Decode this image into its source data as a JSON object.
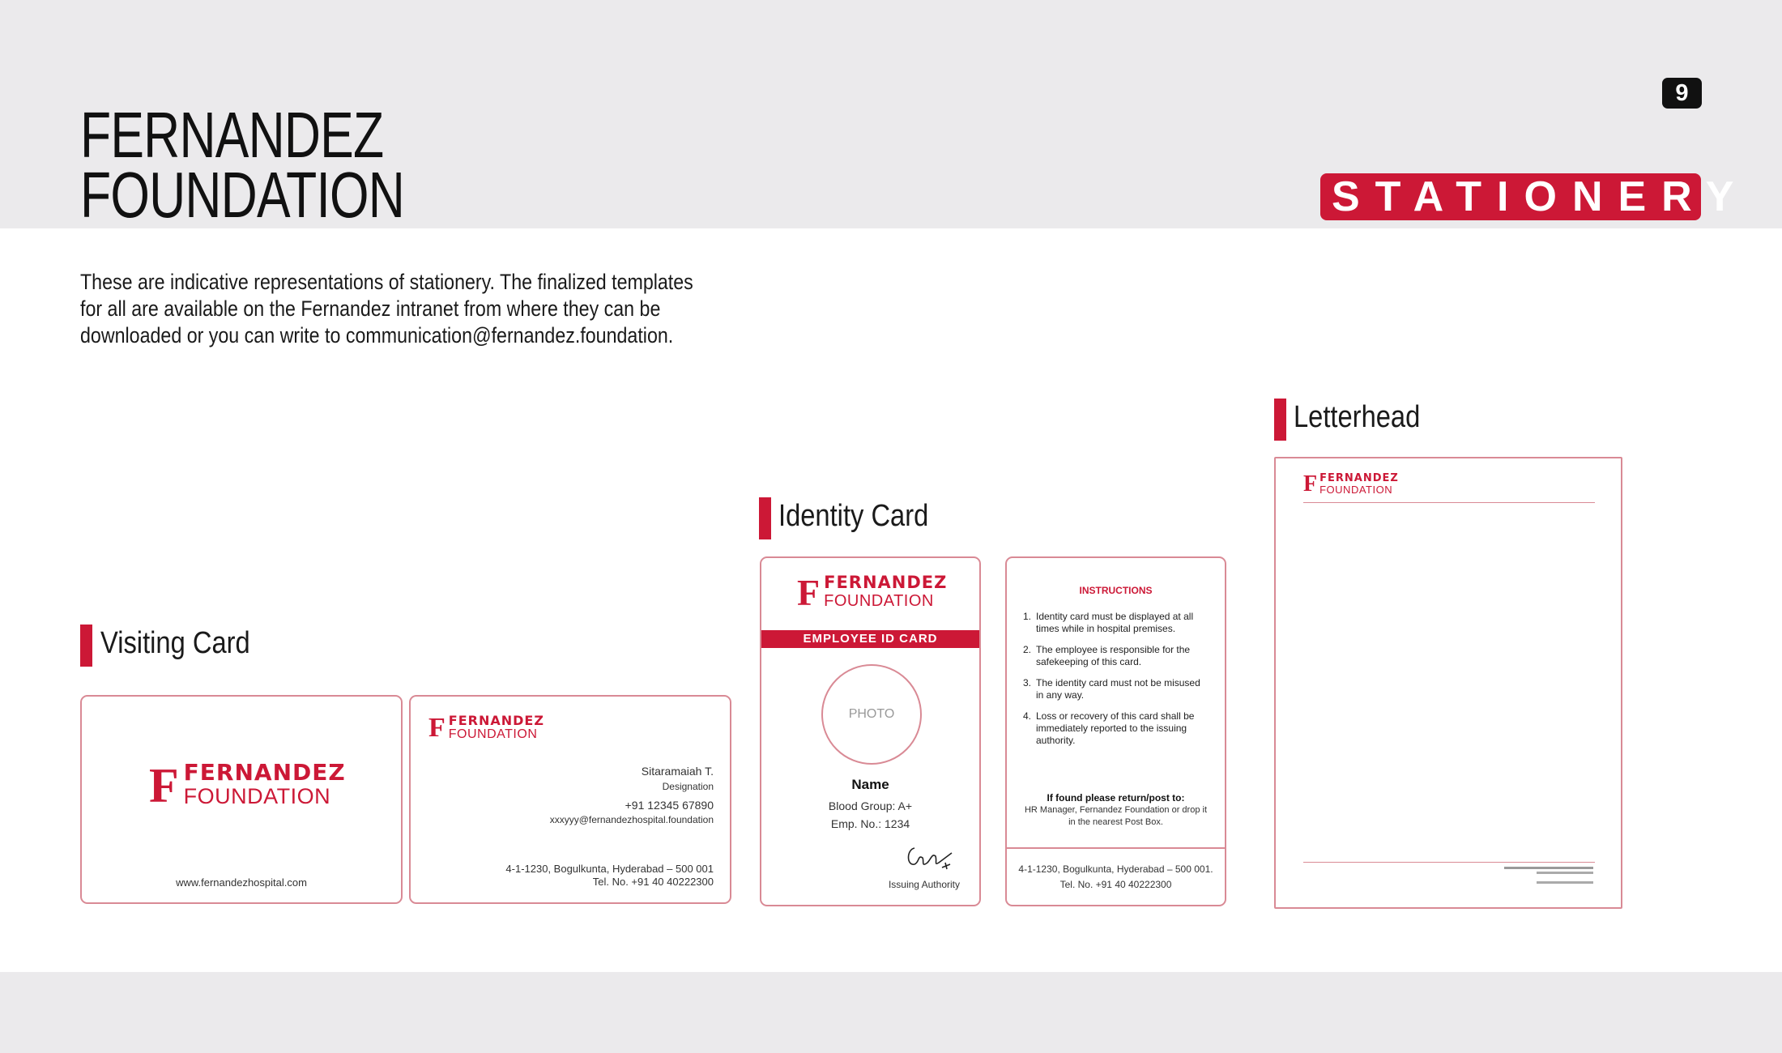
{
  "header": {
    "title_line1": "FERNANDEZ",
    "title_line2": "FOUNDATION",
    "page_number": "9",
    "section": "STATIONERY"
  },
  "intro": {
    "line1": "These are indicative representations of stationery. The finalized templates",
    "line2": "for all are available on the Fernandez intranet from where they can be",
    "line3": "downloaded or you can write to communication@fernandez.foundation."
  },
  "logo": {
    "mark": "F",
    "word1": "FERNANDEZ",
    "word2": "FOUNDATION"
  },
  "visiting_card": {
    "label": "Visiting Card",
    "website": "www.fernandezhospital.com",
    "name": "Sitaramaiah T.",
    "designation": "Designation",
    "phone": "+91 12345 67890",
    "email": "xxxyyy@fernandezhospital.foundation",
    "address": "4-1-1230, Bogulkunta, Hyderabad – 500 001",
    "tel": "Tel. No. +91 40 40222300"
  },
  "identity_card": {
    "label": "Identity Card",
    "band": "EMPLOYEE ID CARD",
    "photo": "PHOTO",
    "name": "Name",
    "blood_group": "Blood Group: A+",
    "emp_no": "Emp. No.: 1234",
    "issuing": "Issuing Authority",
    "instructions_title": "INSTRUCTIONS",
    "instructions": [
      {
        "n": "1.",
        "text": "Identity card must be displayed at all times while in hospital premises."
      },
      {
        "n": "2.",
        "text": "The employee is responsible for the safekeeping of this card."
      },
      {
        "n": "3.",
        "text": "The identity card must not be misused in any way."
      },
      {
        "n": "4.",
        "text": "Loss or recovery of this card shall be immediately reported to the issuing authority."
      }
    ],
    "return_title": "If found please return/post to:",
    "return_line1": "HR Manager, Fernandez Foundation or drop it",
    "return_line2": "in the nearest Post Box.",
    "address": "4-1-1230, Bogulkunta, Hyderabad – 500 001.",
    "tel": "Tel. No. +91 40 40222300"
  },
  "letterhead": {
    "label": "Letterhead"
  },
  "colors": {
    "brand_red": "#cc1836",
    "band_grey": "#ebeaec",
    "card_border": "#d98a95"
  }
}
